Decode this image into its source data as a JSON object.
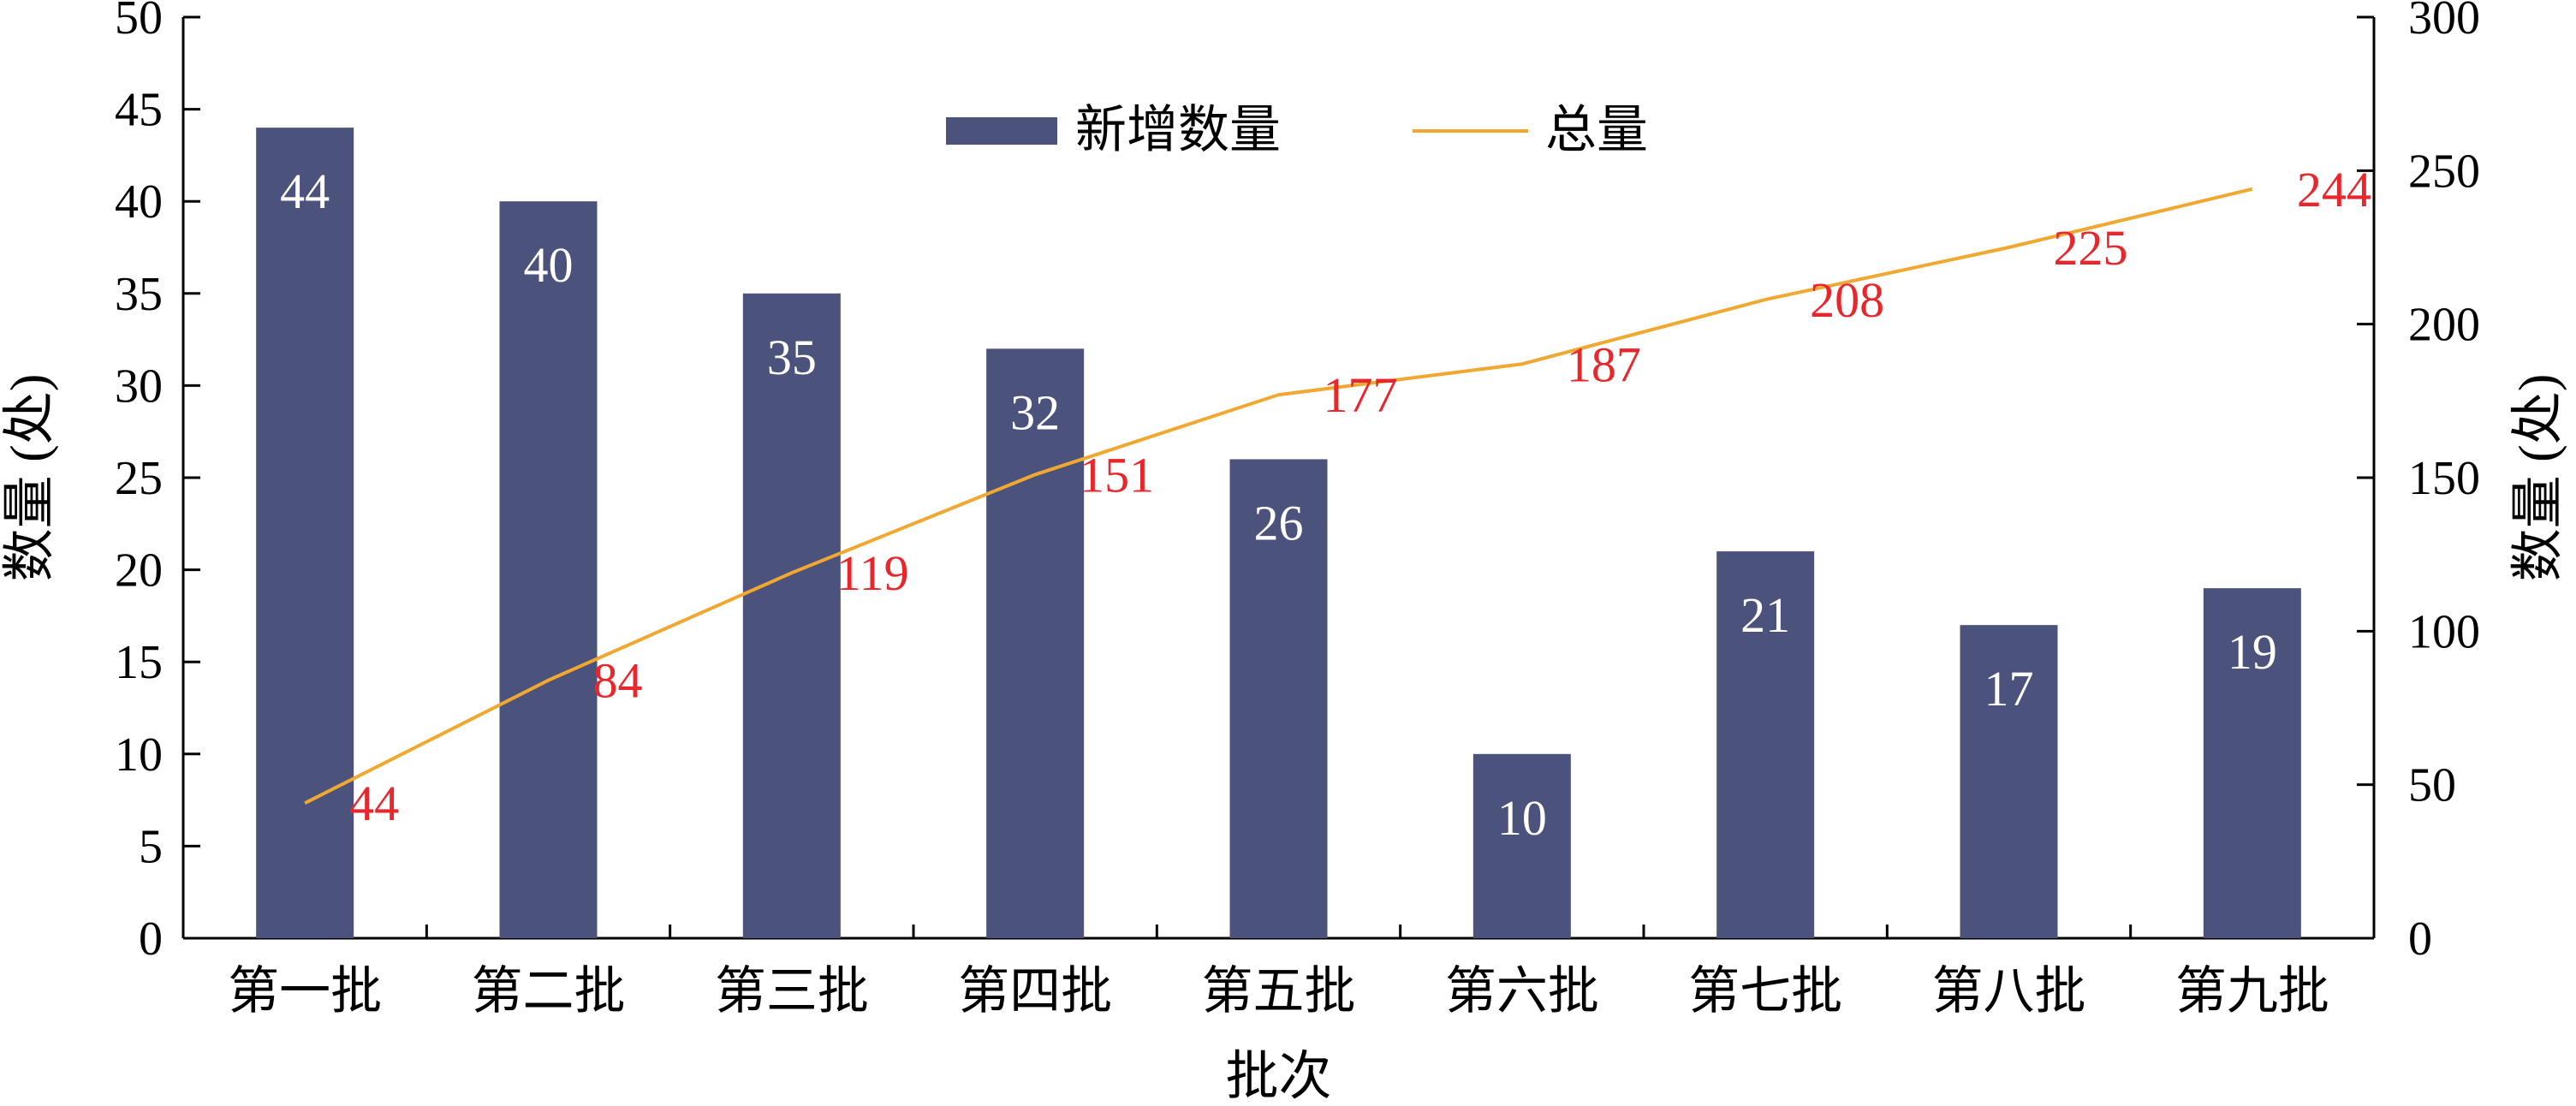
{
  "chart_data": {
    "type": "bar",
    "categories": [
      "第一批",
      "第二批",
      "第三批",
      "第四批",
      "第五批",
      "第六批",
      "第七批",
      "第八批",
      "第九批"
    ],
    "series": [
      {
        "name": "新增数量",
        "type": "bar",
        "axis": "left",
        "values": [
          44,
          40,
          35,
          32,
          26,
          10,
          21,
          17,
          19
        ],
        "labels": [
          "44",
          "40",
          "35",
          "32",
          "26",
          "10",
          "21",
          "17",
          "19"
        ],
        "color": "#4b527c"
      },
      {
        "name": "总量",
        "type": "line",
        "axis": "right",
        "values": [
          44,
          84,
          119,
          151,
          177,
          187,
          208,
          225,
          244
        ],
        "labels": [
          "44",
          "84",
          "119",
          "151",
          "177",
          "187",
          "208",
          "225",
          "244"
        ],
        "color": "#f0a830",
        "label_color": "#e8262b"
      }
    ],
    "xlabel": "批次",
    "ylabel": "数量 (处)",
    "y2label": "数量 (处)",
    "ylim": [
      0,
      50
    ],
    "y2lim": [
      0,
      300
    ],
    "yticks": [
      "0",
      "5",
      "10",
      "15",
      "20",
      "25",
      "30",
      "35",
      "40",
      "45",
      "50"
    ],
    "y2ticks": [
      "0",
      "50",
      "100",
      "150",
      "200",
      "250",
      "300"
    ],
    "legend": {
      "placement": "top-center",
      "entries": [
        "新增数量",
        "总量"
      ]
    },
    "grid": false
  }
}
